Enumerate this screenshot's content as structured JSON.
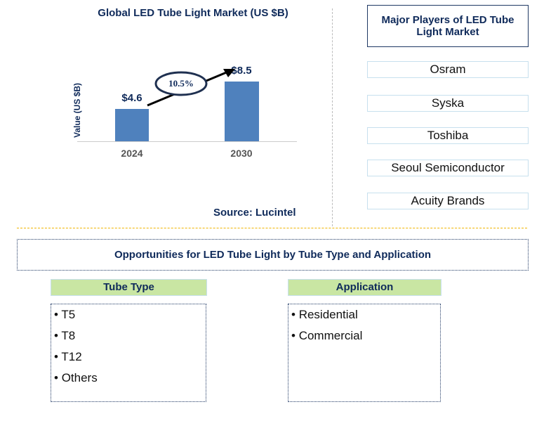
{
  "chart_data": {
    "type": "bar",
    "title": "Global LED Tube Light Market (US $B)",
    "ylabel": "Value (US $B)",
    "categories": [
      "2024",
      "2030"
    ],
    "values": [
      4.6,
      8.5
    ],
    "data_labels": [
      "$4.6",
      "$8.5"
    ],
    "annotation": "10.5%",
    "color": "#4f81bd"
  },
  "source": "Source: Lucintel",
  "players": {
    "title": "Major Players of LED Tube Light Market",
    "items": [
      "Osram",
      "Syska",
      "Toshiba",
      "Seoul Semiconductor",
      "Acuity Brands"
    ]
  },
  "opportunities": {
    "title": "Opportunities for LED Tube Light by Tube Type and Application",
    "tube_type": {
      "title": "Tube Type",
      "items": [
        "T5",
        "T8",
        "T12",
        "Others"
      ]
    },
    "application": {
      "title": "Application",
      "items": [
        "Residential",
        "Commercial"
      ]
    }
  }
}
